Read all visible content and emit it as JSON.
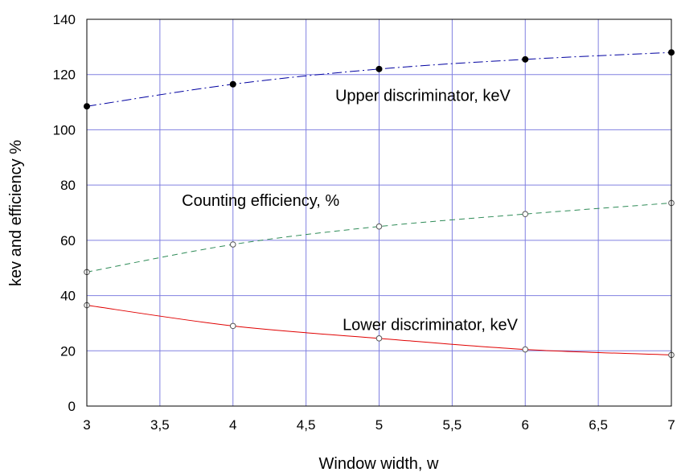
{
  "chart_data": {
    "type": "line",
    "title": "",
    "xlabel": "Window width, w",
    "ylabel": "kev  and  efficiency %",
    "xlim": [
      3,
      7
    ],
    "ylim": [
      0,
      140
    ],
    "x_ticks": [
      3,
      3.5,
      4,
      4.5,
      5,
      5.5,
      6,
      6.5,
      7
    ],
    "x_tick_labels": [
      "3",
      "3,5",
      "4",
      "4,5",
      "5",
      "5,5",
      "6",
      "6,5",
      "7"
    ],
    "y_ticks": [
      0,
      20,
      40,
      60,
      80,
      100,
      120,
      140
    ],
    "y_tick_labels": [
      "0",
      "20",
      "40",
      "60",
      "80",
      "100",
      "120",
      "140"
    ],
    "grid": true,
    "legend": "none",
    "series": [
      {
        "name": "Upper discriminator, keV",
        "x": [
          3,
          4,
          5,
          6,
          7
        ],
        "y": [
          108.5,
          116.5,
          122,
          125.5,
          128
        ],
        "marker": "filled-circle",
        "line_style": "dash-dot",
        "color": "#0000a0"
      },
      {
        "name": "Counting efficiency, %",
        "x": [
          3,
          4,
          5,
          6,
          7
        ],
        "y": [
          48.5,
          58.5,
          65,
          69.5,
          73.5
        ],
        "marker": "open-circle",
        "line_style": "dashed",
        "color": "#2e8b57"
      },
      {
        "name": "Lower discriminator, keV",
        "x": [
          3,
          4,
          5,
          6,
          7
        ],
        "y": [
          36.5,
          29,
          24.5,
          20.5,
          18.5
        ],
        "marker": "open-circle",
        "line_style": "solid",
        "color": "#e00000"
      }
    ],
    "annotations": [
      {
        "text": "Upper discriminator, keV",
        "series": 0
      },
      {
        "text": "Counting efficiency, %",
        "series": 1
      },
      {
        "text": "Lower discriminator, keV",
        "series": 2
      }
    ]
  }
}
